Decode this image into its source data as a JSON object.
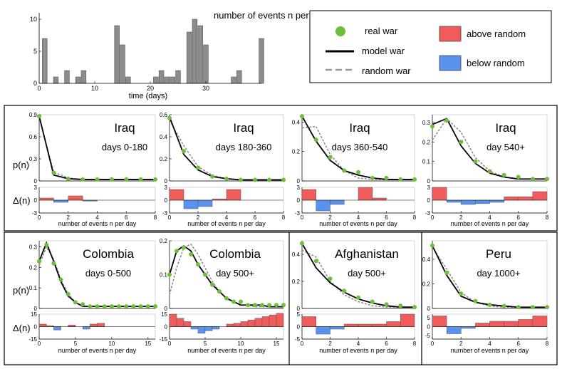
{
  "top_histogram": {
    "title": "number of events n per day",
    "xlabel": "time (days)",
    "x_ticks": [
      0,
      10,
      20,
      30
    ],
    "y_ticks": [
      0,
      5,
      10
    ],
    "xlim": [
      0,
      40
    ],
    "ylim": [
      0,
      11
    ],
    "values": [
      0,
      7,
      0,
      1,
      0,
      2,
      0,
      1,
      2,
      0,
      0,
      0,
      0,
      0,
      9,
      6,
      1,
      0,
      0,
      0,
      0,
      1,
      2,
      1,
      1,
      2,
      0,
      8,
      10,
      9,
      6,
      0,
      0,
      0,
      0,
      1,
      2,
      0,
      0,
      0,
      7
    ]
  },
  "legend": {
    "real": "real war",
    "model": "model war",
    "random": "random war",
    "above": "above random",
    "below": "below random",
    "colors": {
      "real": "#6cbf3a",
      "model": "#000000",
      "random": "#888888",
      "above": "#f05c5c",
      "below": "#5a92f0"
    }
  },
  "labels": {
    "p_label": "p(n)",
    "delta_label": "Δ(n)",
    "xlabel": "number of events n per day"
  },
  "chart_data": [
    {
      "type": "line",
      "war": "Iraq",
      "period": "days 0-180",
      "xlim": [
        0,
        8
      ],
      "ylim": [
        0,
        0.9
      ],
      "y_ticks": [
        "0",
        "0.3",
        "0.6",
        "0.9"
      ],
      "x_ticks": [
        0,
        2,
        4,
        6,
        8
      ],
      "real": [
        0.88,
        0.11,
        0.03,
        0.02,
        0.02,
        0.02,
        0.02,
        0.02,
        0.02
      ],
      "model": [
        0.88,
        0.08,
        0.03,
        0.02,
        0.02,
        0.02,
        0.02,
        0.02,
        0.02
      ],
      "random": [
        0.86,
        0.12,
        0.04,
        0.02,
        0.02,
        0.02,
        0.02,
        0.02,
        0.02
      ],
      "delta_ylim": [
        -3,
        3
      ],
      "delta_ticks": [
        "3",
        "0",
        "-3"
      ],
      "delta": [
        0.5,
        -0.5,
        1,
        -0.2,
        0,
        0,
        0,
        0
      ]
    },
    {
      "type": "line",
      "war": "Iraq",
      "period": "days 180-360",
      "xlim": [
        0,
        8
      ],
      "ylim": [
        0,
        0.6
      ],
      "y_ticks": [
        "0",
        "0.2",
        "0.4",
        "0.6"
      ],
      "x_ticks": [
        0,
        2,
        4,
        6,
        8
      ],
      "real": [
        0.57,
        0.27,
        0.12,
        0.04,
        0.02,
        0.01,
        0.01,
        0.01,
        0.01
      ],
      "model": [
        0.58,
        0.24,
        0.1,
        0.04,
        0.02,
        0.01,
        0.01,
        0.01,
        0.01
      ],
      "random": [
        0.55,
        0.32,
        0.13,
        0.05,
        0.02,
        0.01,
        0.01,
        0.01,
        0.01
      ],
      "delta_ylim": [
        -3,
        3
      ],
      "delta_ticks": [
        "3",
        "0",
        "-3"
      ],
      "delta": [
        2.5,
        -2,
        -1.5,
        0.3,
        2.5,
        0,
        0,
        0
      ]
    },
    {
      "type": "line",
      "war": "Iraq",
      "period": "days 360-540",
      "xlim": [
        0,
        8
      ],
      "ylim": [
        0,
        0.45
      ],
      "y_ticks": [
        "0",
        "0.2",
        "0.4"
      ],
      "x_ticks": [
        0,
        2,
        4,
        6,
        8
      ],
      "real": [
        0.44,
        0.28,
        0.16,
        0.07,
        0.06,
        0.02,
        0.02,
        0.01,
        0.01
      ],
      "model": [
        0.44,
        0.27,
        0.14,
        0.07,
        0.04,
        0.02,
        0.01,
        0.01,
        0.01
      ],
      "random": [
        0.36,
        0.37,
        0.18,
        0.07,
        0.02,
        0.01,
        0.01,
        0.01,
        0.01
      ],
      "delta_ylim": [
        -3,
        3
      ],
      "delta_ticks": [
        "3",
        "0",
        "-3"
      ],
      "delta": [
        2.5,
        -2.5,
        -1,
        0,
        3,
        0.5,
        0,
        0
      ]
    },
    {
      "type": "line",
      "war": "Iraq",
      "period": "day 540+",
      "xlim": [
        0,
        8
      ],
      "ylim": [
        0,
        0.34
      ],
      "y_ticks": [
        "0",
        "0.1",
        "0.2",
        "0.3"
      ],
      "x_ticks": [
        0,
        2,
        4,
        6,
        8
      ],
      "real": [
        0.28,
        0.31,
        0.2,
        0.1,
        0.05,
        0.03,
        0.02,
        0.01,
        0.01
      ],
      "model": [
        0.29,
        0.32,
        0.18,
        0.09,
        0.04,
        0.02,
        0.01,
        0.01,
        0.01
      ],
      "random": [
        0.21,
        0.32,
        0.25,
        0.12,
        0.05,
        0.02,
        0.01,
        0.01,
        0.01
      ],
      "delta_ylim": [
        -3,
        3
      ],
      "delta_ticks": [
        "3",
        "0",
        "-3"
      ],
      "delta": [
        3,
        -0.5,
        -1,
        -0.8,
        -0.5,
        0.8,
        0.8,
        2
      ]
    },
    {
      "type": "line",
      "war": "Colombia",
      "period": "days 0-500",
      "xlim": [
        0,
        16
      ],
      "ylim": [
        0,
        0.33
      ],
      "y_ticks": [
        "0",
        "0.1",
        "0.2",
        "0.3"
      ],
      "x_ticks": [
        0,
        5,
        10,
        15
      ],
      "real": [
        0.23,
        0.31,
        0.22,
        0.14,
        0.07,
        0.03,
        0.02,
        0.01,
        0.01,
        0.01,
        0.01,
        0.01,
        0.01,
        0.01,
        0.01,
        0.01,
        0.01
      ],
      "model": [
        0.23,
        0.32,
        0.23,
        0.13,
        0.06,
        0.03,
        0.01,
        0.01,
        0.01,
        0.01,
        0.01,
        0.01,
        0.01,
        0.01,
        0.01,
        0.01,
        0.01
      ],
      "random": [
        0.21,
        0.3,
        0.24,
        0.14,
        0.07,
        0.03,
        0.01,
        0.01,
        0.01,
        0.01,
        0.01,
        0.01,
        0.01,
        0.01,
        0.01,
        0.01,
        0.01
      ],
      "delta_ylim": [
        -15,
        15
      ],
      "delta_ticks": [
        "15",
        "0",
        "-15"
      ],
      "delta": [
        3,
        1,
        -4,
        0,
        2,
        0,
        -3,
        3,
        4,
        0,
        0,
        0,
        0,
        0,
        0,
        0
      ]
    },
    {
      "type": "line",
      "war": "Colombia",
      "period": "day 500+",
      "xlim": [
        0,
        16
      ],
      "ylim": [
        0,
        0.2
      ],
      "y_ticks": [
        "0",
        "0.1",
        "0.2"
      ],
      "x_ticks": [
        0,
        5,
        10,
        15
      ],
      "real": [
        0.1,
        0.17,
        0.18,
        0.16,
        0.13,
        0.1,
        0.07,
        0.05,
        0.03,
        0.02,
        0.02,
        0.01,
        0.01,
        0.01,
        0.01,
        0.01,
        0.01
      ],
      "model": [
        0.1,
        0.17,
        0.185,
        0.17,
        0.13,
        0.1,
        0.07,
        0.05,
        0.03,
        0.02,
        0.01,
        0.01,
        0.01,
        0.01,
        0.005,
        0.005,
        0.005
      ],
      "random": [
        0.04,
        0.12,
        0.18,
        0.19,
        0.16,
        0.12,
        0.08,
        0.05,
        0.03,
        0.02,
        0.01,
        0.01,
        0.005,
        0.005,
        0.005,
        0.005,
        0.005
      ],
      "delta_ylim": [
        -15,
        15
      ],
      "delta_ticks": [
        "15",
        "0",
        "-15"
      ],
      "delta": [
        15,
        10,
        6,
        -3,
        -8,
        -5,
        -3,
        0,
        3,
        4,
        6,
        8,
        10,
        12,
        14,
        16
      ]
    },
    {
      "type": "line",
      "war": "Afghanistan",
      "period": "day 500+",
      "xlim": [
        0,
        8
      ],
      "ylim": [
        0,
        0.5
      ],
      "y_ticks": [
        "0",
        "0.2",
        "0.4"
      ],
      "x_ticks": [
        0,
        2,
        4,
        6,
        8
      ],
      "real": [
        0.48,
        0.35,
        0.22,
        0.13,
        0.08,
        0.05,
        0.03,
        0.02,
        0.01
      ],
      "model": [
        0.48,
        0.3,
        0.19,
        0.12,
        0.07,
        0.04,
        0.02,
        0.01,
        0.01
      ],
      "random": [
        0.43,
        0.38,
        0.2,
        0.1,
        0.05,
        0.02,
        0.01,
        0.01,
        0.01
      ],
      "delta_ylim": [
        -5,
        5
      ],
      "delta_ticks": [
        "5",
        "0",
        "-5"
      ],
      "delta": [
        4,
        -3,
        -1,
        1,
        1,
        1,
        2,
        5
      ]
    },
    {
      "type": "line",
      "war": "Peru",
      "period": "day 1000+",
      "xlim": [
        0,
        8
      ],
      "ylim": [
        0,
        0.55
      ],
      "y_ticks": [
        "0",
        "0.2",
        "0.4"
      ],
      "x_ticks": [
        0,
        2,
        4,
        6,
        8
      ],
      "real": [
        0.51,
        0.29,
        0.12,
        0.06,
        0.03,
        0.02,
        0.01,
        0.01,
        0.01
      ],
      "model": [
        0.51,
        0.27,
        0.1,
        0.05,
        0.03,
        0.02,
        0.01,
        0.01,
        0.01
      ],
      "random": [
        0.5,
        0.32,
        0.13,
        0.05,
        0.02,
        0.01,
        0.01,
        0.01,
        0.01
      ],
      "delta_ylim": [
        -7,
        7
      ],
      "delta_ticks": [
        "5",
        "0",
        "-5"
      ],
      "delta": [
        6,
        -4,
        -1,
        2,
        3,
        3,
        4,
        6
      ]
    }
  ]
}
